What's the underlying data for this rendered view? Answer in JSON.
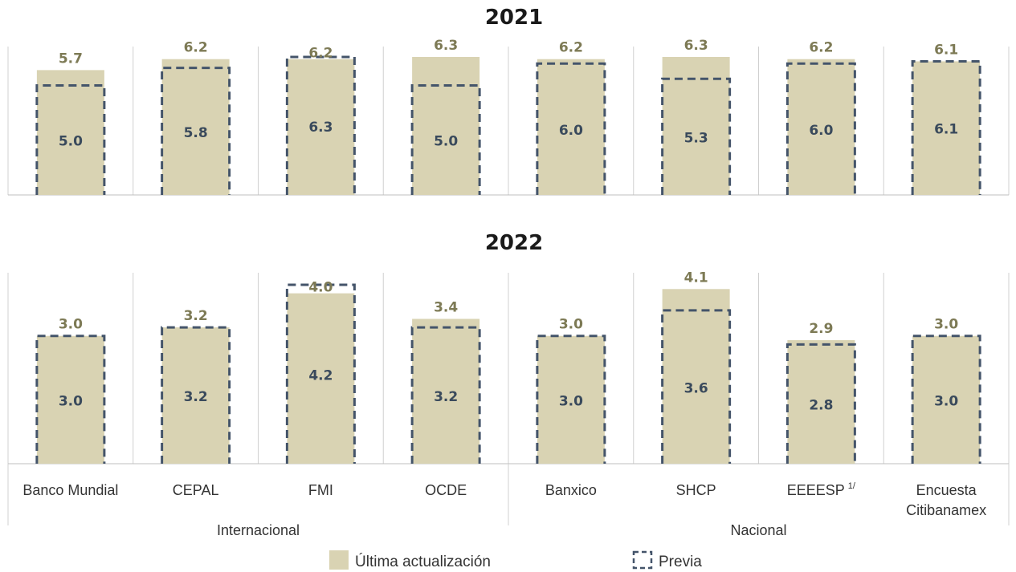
{
  "colors": {
    "current_fill": "#d9d3b3",
    "previous_stroke": "#44546a",
    "current_label": "#7d7a55",
    "previous_label": "#3a4a5c",
    "separator": "#d0d0d0"
  },
  "chart_data": [
    {
      "type": "bar",
      "title": "2021",
      "categories": [
        "Banco Mundial",
        "CEPAL",
        "FMI",
        "OCDE",
        "Banxico",
        "SHCP",
        "EEEESP",
        "Encuesta Citibanamex"
      ],
      "series": [
        {
          "name": "Última actualización",
          "values": [
            5.7,
            6.2,
            6.2,
            6.3,
            6.2,
            6.3,
            6.2,
            6.1
          ]
        },
        {
          "name": "Previa",
          "values": [
            5.0,
            5.8,
            6.3,
            5.0,
            6.0,
            5.3,
            6.0,
            6.1
          ]
        }
      ]
    },
    {
      "type": "bar",
      "title": "2022",
      "categories": [
        "Banco Mundial",
        "CEPAL",
        "FMI",
        "OCDE",
        "Banxico",
        "SHCP",
        "EEEESP",
        "Encuesta Citibanamex"
      ],
      "series": [
        {
          "name": "Última actualización",
          "values": [
            3.0,
            3.2,
            4.0,
            3.4,
            3.0,
            4.1,
            2.9,
            3.0
          ]
        },
        {
          "name": "Previa",
          "values": [
            3.0,
            3.2,
            4.2,
            3.2,
            3.0,
            3.6,
            2.8,
            3.0
          ]
        }
      ]
    }
  ],
  "category_labels": [
    {
      "lines": [
        "Banco Mundial"
      ]
    },
    {
      "lines": [
        "CEPAL"
      ]
    },
    {
      "lines": [
        "FMI"
      ]
    },
    {
      "lines": [
        "OCDE"
      ]
    },
    {
      "lines": [
        "Banxico"
      ]
    },
    {
      "lines": [
        "SHCP"
      ]
    },
    {
      "lines": [
        "EEEESP"
      ],
      "sup": "1/"
    },
    {
      "lines": [
        "Encuesta",
        "Citibanamex"
      ]
    }
  ],
  "groups": [
    {
      "name": "Internacional",
      "from": 0,
      "to": 3
    },
    {
      "name": "Nacional",
      "from": 4,
      "to": 7
    }
  ],
  "legend": {
    "current": "Última actualización",
    "previous": "Previa"
  }
}
